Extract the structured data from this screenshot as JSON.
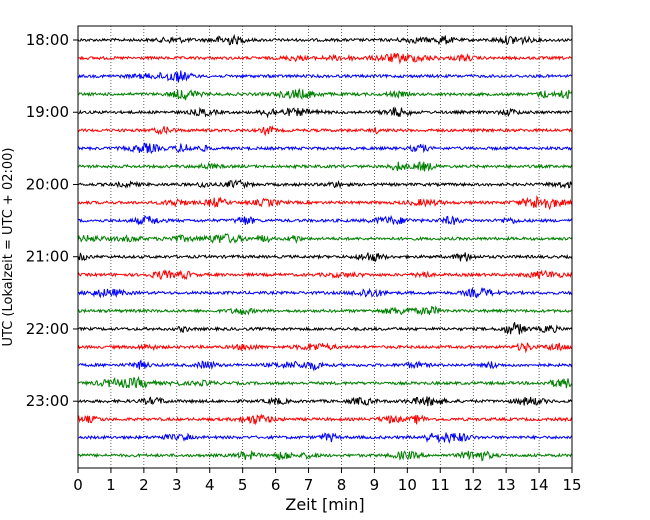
{
  "chart_data": {
    "type": "line",
    "title": "",
    "xlabel": "Zeit  [min]",
    "ylabel": "UTC (Lokalzeit = UTC + 02:00)",
    "xlim": [
      0,
      15
    ],
    "xticks": [
      "0",
      "1",
      "2",
      "3",
      "4",
      "5",
      "6",
      "7",
      "8",
      "9",
      "10",
      "11",
      "12",
      "13",
      "14",
      "15"
    ],
    "yticks": [
      "18:00",
      "19:00",
      "20:00",
      "21:00",
      "22:00",
      "23:00"
    ],
    "ytick_rows": [
      0,
      4,
      8,
      12,
      16,
      20
    ],
    "grid": "vertical dotted",
    "trace_interval_min": 15,
    "trace_colors": [
      "#000000",
      "#ff0000",
      "#0000ff",
      "#008000"
    ],
    "traces": [
      {
        "start": "18:00",
        "color": "#000000"
      },
      {
        "start": "18:15",
        "color": "#ff0000"
      },
      {
        "start": "18:30",
        "color": "#0000ff"
      },
      {
        "start": "18:45",
        "color": "#008000"
      },
      {
        "start": "19:00",
        "color": "#000000"
      },
      {
        "start": "19:15",
        "color": "#ff0000"
      },
      {
        "start": "19:30",
        "color": "#0000ff"
      },
      {
        "start": "19:45",
        "color": "#008000"
      },
      {
        "start": "20:00",
        "color": "#000000"
      },
      {
        "start": "20:15",
        "color": "#ff0000"
      },
      {
        "start": "20:30",
        "color": "#0000ff"
      },
      {
        "start": "20:45",
        "color": "#008000"
      },
      {
        "start": "21:00",
        "color": "#000000"
      },
      {
        "start": "21:15",
        "color": "#ff0000"
      },
      {
        "start": "21:30",
        "color": "#0000ff"
      },
      {
        "start": "21:45",
        "color": "#008000"
      },
      {
        "start": "22:00",
        "color": "#000000"
      },
      {
        "start": "22:15",
        "color": "#ff0000"
      },
      {
        "start": "22:30",
        "color": "#0000ff"
      },
      {
        "start": "22:45",
        "color": "#008000"
      },
      {
        "start": "23:00",
        "color": "#000000"
      },
      {
        "start": "23:15",
        "color": "#ff0000"
      },
      {
        "start": "23:30",
        "color": "#0000ff"
      },
      {
        "start": "23:45",
        "color": "#008000"
      }
    ]
  }
}
